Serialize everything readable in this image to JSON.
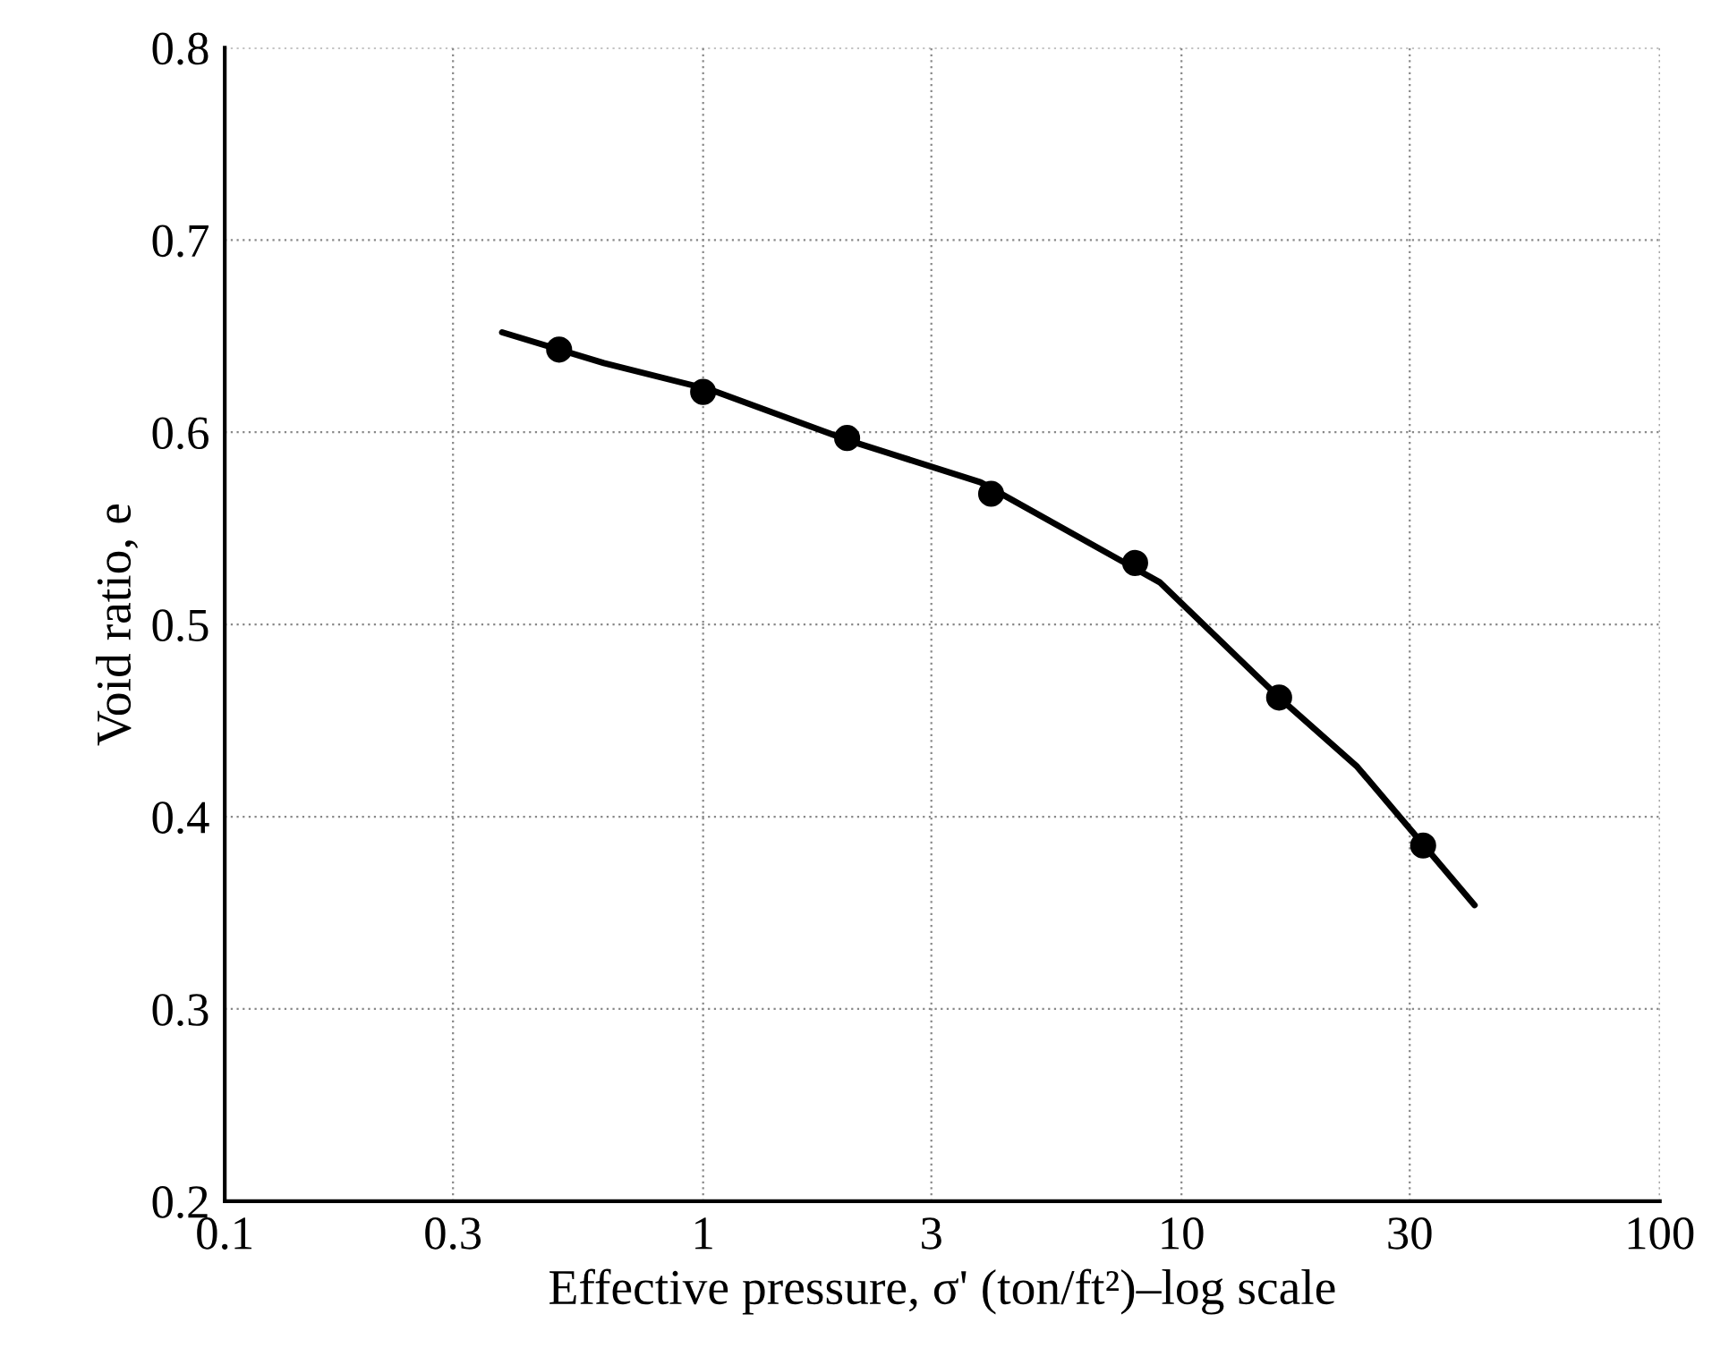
{
  "chart_data": {
    "type": "scatter",
    "xlabel": "Effective pressure, σ' (ton/ft²)–log scale",
    "ylabel": "Void ratio, e",
    "log": "x",
    "grid": true,
    "xlim": [
      0.1,
      100
    ],
    "xticks": [
      0.1,
      0.3,
      1,
      3,
      10,
      30,
      100
    ],
    "ylim": [
      0.2,
      0.8
    ],
    "yticks": [
      0.2,
      0.3,
      0.4,
      0.5,
      0.6,
      0.7,
      0.8
    ],
    "series": [
      {
        "color": "#000000",
        "marker": "circle",
        "x": [
          0.5,
          1,
          2,
          4,
          8,
          16,
          32
        ],
        "values": [
          0.643,
          0.621,
          0.597,
          0.568,
          0.532,
          0.462,
          0.385
        ]
      },
      {
        "type": "line",
        "color": "#000000",
        "marker": "none",
        "x": [
          0.38,
          0.62,
          1.04,
          2,
          3.8,
          9,
          16,
          23.3,
          41
        ],
        "values": [
          0.652,
          0.636,
          0.622,
          0.596,
          0.574,
          0.522,
          0.462,
          0.426,
          0.354
        ]
      }
    ]
  }
}
